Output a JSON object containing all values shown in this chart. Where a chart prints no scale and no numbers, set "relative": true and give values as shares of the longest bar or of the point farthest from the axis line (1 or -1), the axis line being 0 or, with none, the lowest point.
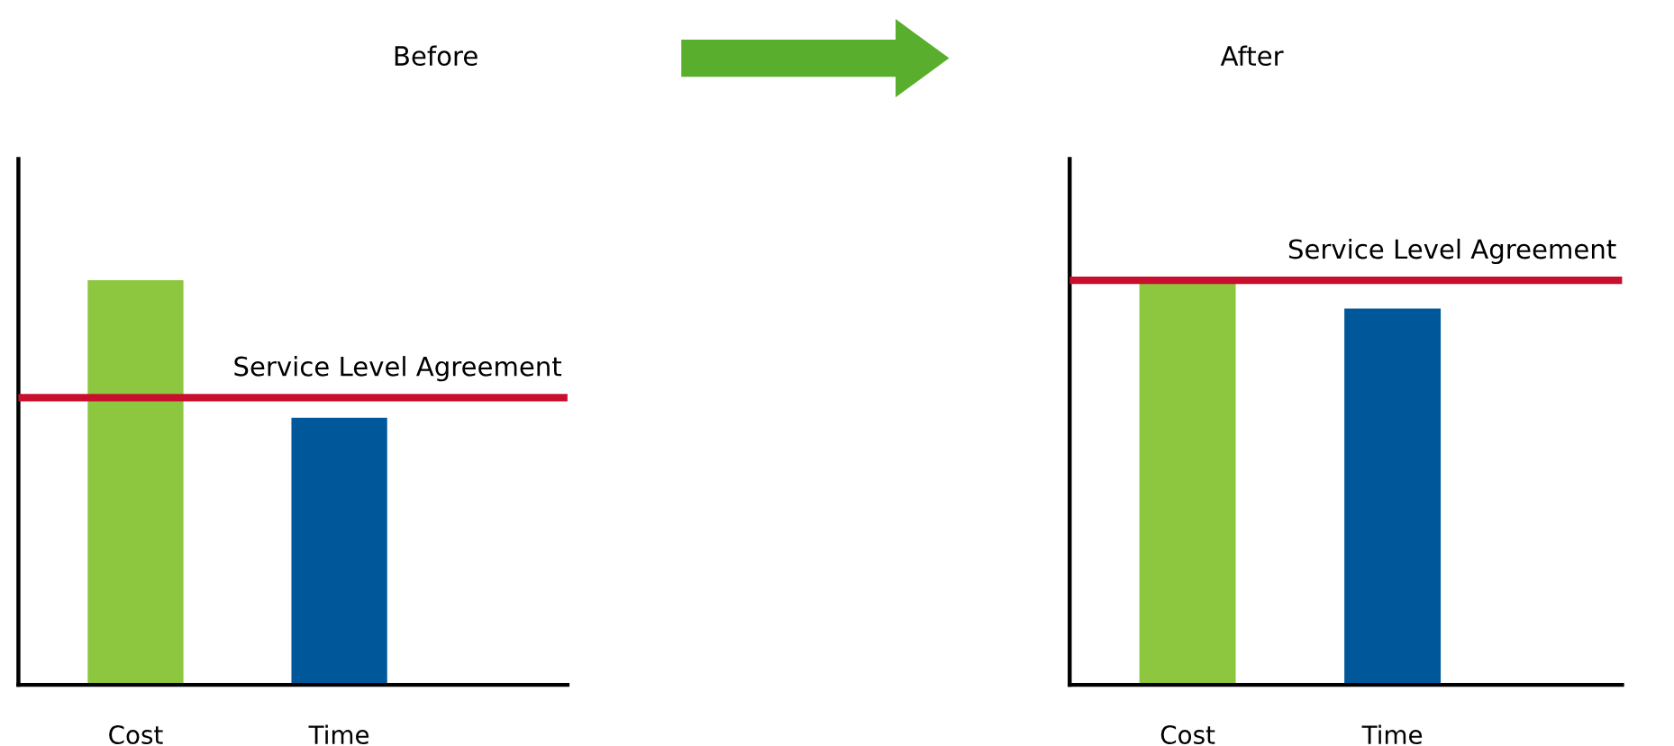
{
  "chart_data": [
    {
      "type": "bar",
      "title": "Before",
      "categories": [
        "Cost",
        "Time"
      ],
      "values": [
        1,
        0.66
      ],
      "colors": [
        "#8dc63f",
        "#00589a"
      ],
      "relative": true,
      "tick_labels": "x",
      "grid": false,
      "legend": false,
      "ref_lines": [
        {
          "axis": "y",
          "value": 0.71,
          "label": "Service Level Agreement",
          "color": "#c8102e"
        }
      ]
    },
    {
      "type": "bar",
      "title": "After",
      "categories": [
        "Cost",
        "Time"
      ],
      "values": [
        1,
        0.93
      ],
      "colors": [
        "#8dc63f",
        "#00589a"
      ],
      "relative": true,
      "tick_labels": "x",
      "grid": false,
      "legend": false,
      "ref_lines": [
        {
          "axis": "y",
          "value": 1.0,
          "label": "Service Level Agreement",
          "color": "#c8102e"
        }
      ]
    }
  ]
}
